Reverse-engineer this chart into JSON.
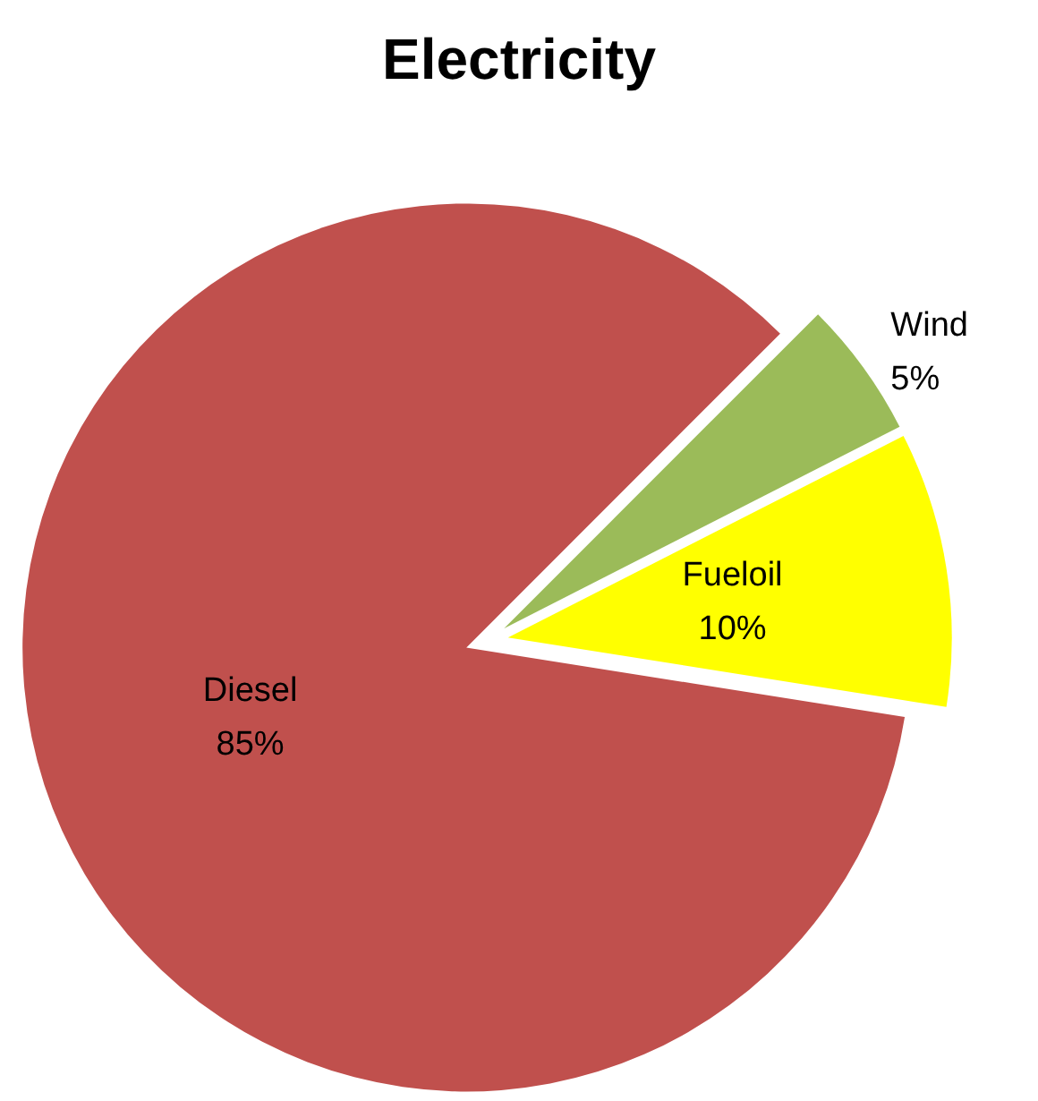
{
  "chart_data": {
    "type": "pie",
    "title": "Electricity",
    "categories": [
      "Wind",
      "Fueloil",
      "Diesel"
    ],
    "values": [
      5,
      10,
      85
    ],
    "colors": [
      "#9bbb59",
      "#ffff00",
      "#c0504d"
    ],
    "value_labels": [
      "5%",
      "10%",
      "85%"
    ],
    "legend": false
  }
}
